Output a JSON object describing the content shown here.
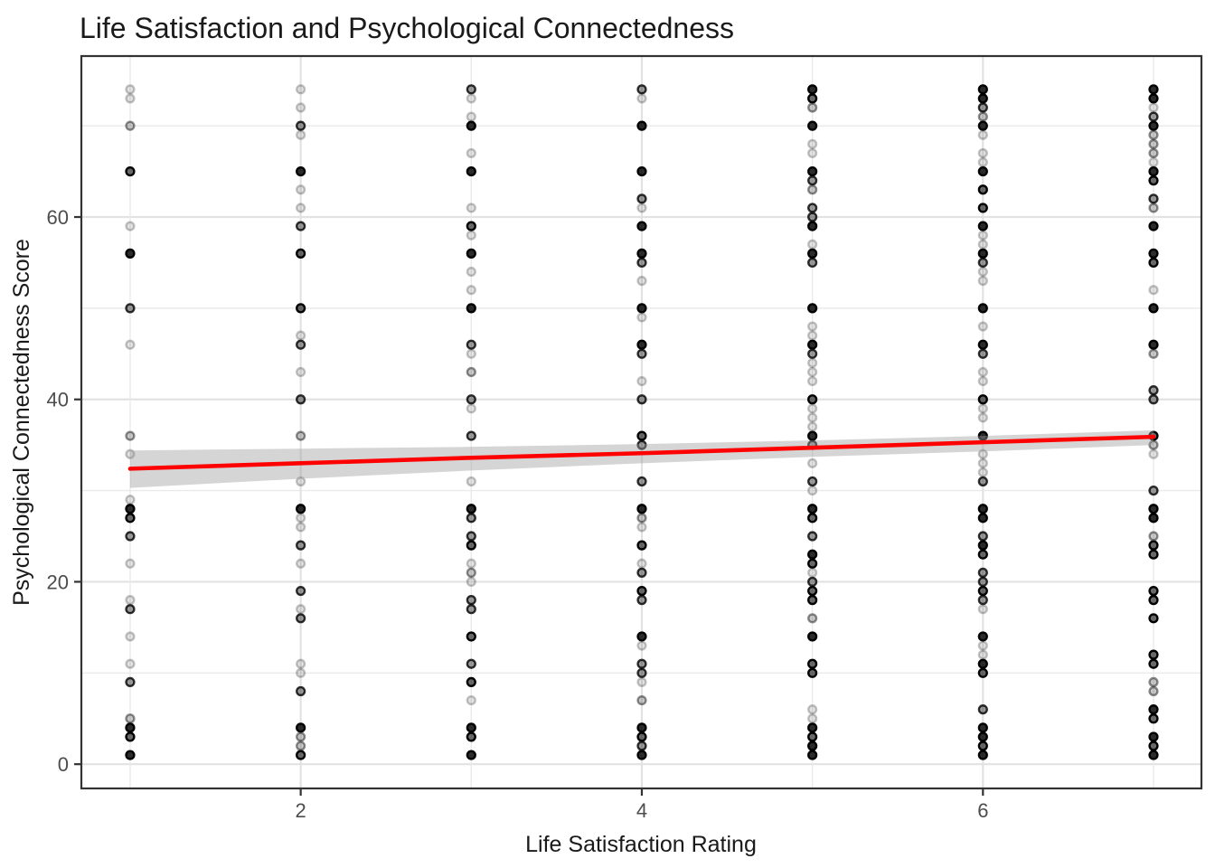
{
  "title": "Life Satisfaction and Psychological Connectedness",
  "chart_data": {
    "type": "scatter",
    "title": "Life Satisfaction and Psychological Connectedness",
    "xlabel": "Life Satisfaction Rating",
    "ylabel": "Psychological Connectedness Score",
    "x_ticks": [
      2,
      4,
      6
    ],
    "y_ticks": [
      0,
      20,
      40,
      60
    ],
    "x_gridlines": [
      1,
      2,
      3,
      4,
      5,
      6,
      7
    ],
    "y_gridlines": [
      0,
      10,
      20,
      30,
      40,
      50,
      60,
      70
    ],
    "xlim": [
      0.714,
      7.281
    ],
    "ylim": [
      -2.66,
      77.65
    ],
    "grid": "on",
    "legend": "none",
    "colors": {
      "point": "#000000",
      "trend_line": "#ff0000",
      "ci_band": "#9b9b9b",
      "grid_major": "#e2e2e2",
      "grid_minor": "#eaeaea",
      "panel_border": "#333333",
      "tick_mark": "#333333",
      "tick_text": "#4d4d4d"
    },
    "alpha_levels": {
      "1": 0.13,
      "2": 0.25,
      "3": 0.45,
      "4": 0.68,
      "5": 0.97
    },
    "point_note": "each point encoded as [connectedness_score, opacity_level]; darker = more overlapping respondents",
    "columns": [
      {
        "x": 1,
        "points": [
          [
            74,
            1
          ],
          [
            73,
            1
          ],
          [
            70,
            2
          ],
          [
            65,
            4
          ],
          [
            59,
            1
          ],
          [
            56,
            5
          ],
          [
            50,
            3
          ],
          [
            46,
            1
          ],
          [
            36,
            2
          ],
          [
            34,
            1
          ],
          [
            29,
            1
          ],
          [
            28,
            5
          ],
          [
            27,
            4
          ],
          [
            25,
            3
          ],
          [
            22,
            1
          ],
          [
            18,
            1
          ],
          [
            17,
            3
          ],
          [
            14,
            1
          ],
          [
            11,
            1
          ],
          [
            9,
            3
          ],
          [
            5,
            2
          ],
          [
            4,
            5
          ],
          [
            3,
            4
          ],
          [
            1,
            5
          ]
        ]
      },
      {
        "x": 2,
        "points": [
          [
            74,
            1
          ],
          [
            72,
            1
          ],
          [
            70,
            3
          ],
          [
            69,
            1
          ],
          [
            65,
            5
          ],
          [
            63,
            1
          ],
          [
            61,
            1
          ],
          [
            59,
            3
          ],
          [
            56,
            4
          ],
          [
            50,
            4
          ],
          [
            47,
            1
          ],
          [
            46,
            3
          ],
          [
            43,
            1
          ],
          [
            40,
            3
          ],
          [
            36,
            2
          ],
          [
            31,
            1
          ],
          [
            28,
            5
          ],
          [
            27,
            1
          ],
          [
            26,
            1
          ],
          [
            24,
            3
          ],
          [
            22,
            1
          ],
          [
            19,
            3
          ],
          [
            17,
            1
          ],
          [
            16,
            3
          ],
          [
            11,
            1
          ],
          [
            10,
            1
          ],
          [
            8,
            3
          ],
          [
            4,
            5
          ],
          [
            3,
            2
          ],
          [
            2,
            2
          ],
          [
            1,
            4
          ]
        ]
      },
      {
        "x": 3,
        "points": [
          [
            74,
            3
          ],
          [
            73,
            1
          ],
          [
            71,
            1
          ],
          [
            70,
            5
          ],
          [
            67,
            1
          ],
          [
            65,
            5
          ],
          [
            61,
            1
          ],
          [
            59,
            4
          ],
          [
            58,
            1
          ],
          [
            56,
            5
          ],
          [
            54,
            1
          ],
          [
            52,
            1
          ],
          [
            50,
            5
          ],
          [
            46,
            3
          ],
          [
            45,
            1
          ],
          [
            43,
            2
          ],
          [
            40,
            3
          ],
          [
            39,
            1
          ],
          [
            36,
            3
          ],
          [
            31,
            1
          ],
          [
            28,
            5
          ],
          [
            27,
            3
          ],
          [
            25,
            3
          ],
          [
            24,
            4
          ],
          [
            22,
            1
          ],
          [
            21,
            2
          ],
          [
            20,
            1
          ],
          [
            18,
            3
          ],
          [
            17,
            3
          ],
          [
            14,
            4
          ],
          [
            11,
            3
          ],
          [
            9,
            4
          ],
          [
            7,
            1
          ],
          [
            4,
            5
          ],
          [
            3,
            4
          ],
          [
            1,
            5
          ]
        ]
      },
      {
        "x": 4,
        "points": [
          [
            74,
            3
          ],
          [
            73,
            1
          ],
          [
            70,
            5
          ],
          [
            65,
            5
          ],
          [
            62,
            3
          ],
          [
            61,
            1
          ],
          [
            59,
            5
          ],
          [
            56,
            5
          ],
          [
            55,
            3
          ],
          [
            53,
            1
          ],
          [
            50,
            5
          ],
          [
            49,
            1
          ],
          [
            46,
            5
          ],
          [
            45,
            3
          ],
          [
            42,
            1
          ],
          [
            40,
            3
          ],
          [
            36,
            4
          ],
          [
            35,
            3
          ],
          [
            31,
            3
          ],
          [
            28,
            5
          ],
          [
            27,
            2
          ],
          [
            26,
            1
          ],
          [
            24,
            4
          ],
          [
            22,
            1
          ],
          [
            21,
            3
          ],
          [
            19,
            4
          ],
          [
            18,
            3
          ],
          [
            14,
            5
          ],
          [
            13,
            1
          ],
          [
            11,
            3
          ],
          [
            10,
            3
          ],
          [
            9,
            1
          ],
          [
            7,
            2
          ],
          [
            4,
            5
          ],
          [
            3,
            4
          ],
          [
            2,
            3
          ],
          [
            1,
            5
          ]
        ]
      },
      {
        "x": 5,
        "points": [
          [
            74,
            5
          ],
          [
            73,
            4
          ],
          [
            72,
            2
          ],
          [
            70,
            5
          ],
          [
            68,
            1
          ],
          [
            67,
            1
          ],
          [
            65,
            5
          ],
          [
            64,
            3
          ],
          [
            63,
            2
          ],
          [
            61,
            3
          ],
          [
            60,
            3
          ],
          [
            59,
            5
          ],
          [
            57,
            1
          ],
          [
            56,
            5
          ],
          [
            55,
            3
          ],
          [
            50,
            5
          ],
          [
            48,
            1
          ],
          [
            47,
            1
          ],
          [
            46,
            5
          ],
          [
            45,
            3
          ],
          [
            44,
            1
          ],
          [
            43,
            1
          ],
          [
            42,
            1
          ],
          [
            40,
            4
          ],
          [
            39,
            1
          ],
          [
            38,
            1
          ],
          [
            37,
            1
          ],
          [
            36,
            5
          ],
          [
            35,
            3
          ],
          [
            33,
            1
          ],
          [
            31,
            3
          ],
          [
            30,
            1
          ],
          [
            28,
            5
          ],
          [
            27,
            4
          ],
          [
            25,
            3
          ],
          [
            23,
            5
          ],
          [
            22,
            4
          ],
          [
            21,
            1
          ],
          [
            20,
            3
          ],
          [
            19,
            4
          ],
          [
            18,
            4
          ],
          [
            16,
            2
          ],
          [
            14,
            5
          ],
          [
            11,
            4
          ],
          [
            10,
            4
          ],
          [
            6,
            1
          ],
          [
            5,
            1
          ],
          [
            4,
            5
          ],
          [
            3,
            4
          ],
          [
            2,
            5
          ],
          [
            1,
            5
          ]
        ]
      },
      {
        "x": 6,
        "points": [
          [
            74,
            5
          ],
          [
            73,
            5
          ],
          [
            72,
            3
          ],
          [
            71,
            2
          ],
          [
            70,
            5
          ],
          [
            69,
            1
          ],
          [
            67,
            1
          ],
          [
            66,
            1
          ],
          [
            65,
            5
          ],
          [
            63,
            4
          ],
          [
            61,
            4
          ],
          [
            59,
            5
          ],
          [
            58,
            1
          ],
          [
            57,
            1
          ],
          [
            56,
            5
          ],
          [
            55,
            3
          ],
          [
            54,
            1
          ],
          [
            53,
            1
          ],
          [
            50,
            5
          ],
          [
            48,
            1
          ],
          [
            46,
            5
          ],
          [
            45,
            3
          ],
          [
            43,
            1
          ],
          [
            42,
            1
          ],
          [
            40,
            4
          ],
          [
            39,
            1
          ],
          [
            38,
            1
          ],
          [
            36,
            5
          ],
          [
            34,
            1
          ],
          [
            33,
            1
          ],
          [
            32,
            1
          ],
          [
            31,
            3
          ],
          [
            28,
            5
          ],
          [
            27,
            5
          ],
          [
            25,
            3
          ],
          [
            24,
            5
          ],
          [
            23,
            4
          ],
          [
            21,
            3
          ],
          [
            20,
            3
          ],
          [
            19,
            4
          ],
          [
            18,
            3
          ],
          [
            17,
            1
          ],
          [
            14,
            5
          ],
          [
            13,
            1
          ],
          [
            12,
            1
          ],
          [
            11,
            5
          ],
          [
            10,
            4
          ],
          [
            6,
            3
          ],
          [
            4,
            5
          ],
          [
            3,
            5
          ],
          [
            2,
            4
          ],
          [
            1,
            5
          ]
        ]
      },
      {
        "x": 7,
        "points": [
          [
            74,
            5
          ],
          [
            73,
            5
          ],
          [
            72,
            1
          ],
          [
            71,
            3
          ],
          [
            70,
            5
          ],
          [
            69,
            2
          ],
          [
            68,
            2
          ],
          [
            67,
            2
          ],
          [
            66,
            1
          ],
          [
            65,
            5
          ],
          [
            64,
            4
          ],
          [
            62,
            3
          ],
          [
            61,
            2
          ],
          [
            59,
            5
          ],
          [
            56,
            5
          ],
          [
            55,
            4
          ],
          [
            52,
            1
          ],
          [
            50,
            5
          ],
          [
            46,
            5
          ],
          [
            45,
            2
          ],
          [
            41,
            3
          ],
          [
            40,
            3
          ],
          [
            36,
            4
          ],
          [
            35,
            2
          ],
          [
            34,
            1
          ],
          [
            30,
            3
          ],
          [
            28,
            5
          ],
          [
            27,
            5
          ],
          [
            25,
            2
          ],
          [
            24,
            4
          ],
          [
            23,
            4
          ],
          [
            19,
            4
          ],
          [
            18,
            4
          ],
          [
            16,
            4
          ],
          [
            12,
            4
          ],
          [
            11,
            4
          ],
          [
            9,
            2
          ],
          [
            8,
            2
          ],
          [
            6,
            5
          ],
          [
            5,
            4
          ],
          [
            3,
            5
          ],
          [
            2,
            4
          ],
          [
            1,
            5
          ]
        ]
      }
    ],
    "trend": {
      "type": "linear_fit_with_ci",
      "x": [
        1,
        2,
        3,
        4,
        5,
        6,
        7
      ],
      "y": [
        32.4,
        33.0,
        33.6,
        34.1,
        34.7,
        35.3,
        35.9
      ],
      "ci_upper": [
        34.4,
        34.6,
        34.8,
        35.1,
        35.5,
        36.0,
        36.6
      ],
      "ci_lower": [
        30.3,
        31.3,
        32.2,
        33.0,
        33.7,
        34.3,
        35.0
      ]
    }
  }
}
